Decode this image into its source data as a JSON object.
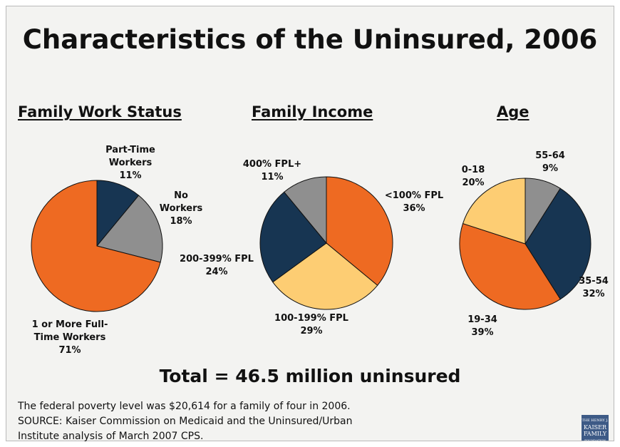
{
  "title": "Characteristics of the Uninsured, 2006",
  "total": "Total = 46.5 million uninsured",
  "footnote_line1": "The federal poverty level was $20,614 for a family of four in 2006.",
  "footnote_line2": "SOURCE: Kaiser Commission on Medicaid and the Uninsured/Urban",
  "footnote_line3": "Institute analysis of March 2007 CPS.",
  "logo_text": [
    "THE HENRY J.",
    "KAISER",
    "FAMILY",
    "FOUNDATION"
  ],
  "colors": {
    "orange": "#ee6a22",
    "navy": "#173552",
    "gray": "#8f8f8f",
    "yellow": "#fdcd73",
    "stroke": "#111111"
  },
  "chart_data": [
    {
      "type": "pie",
      "title": "Family Work Status",
      "slices": [
        {
          "label": "Part-Time\nWorkers\n11%",
          "value": 11,
          "color": "#173552"
        },
        {
          "label": "No\nWorkers\n18%",
          "value": 18,
          "color": "#8f8f8f"
        },
        {
          "label": "1 or More Full-\nTime Workers\n71%",
          "value": 71,
          "color": "#ee6a22"
        }
      ]
    },
    {
      "type": "pie",
      "title": "Family Income",
      "slices": [
        {
          "label": "<100% FPL\n36%",
          "value": 36,
          "color": "#ee6a22"
        },
        {
          "label": "100-199% FPL\n29%",
          "value": 29,
          "color": "#fdcd73"
        },
        {
          "label": "200-399% FPL\n24%",
          "value": 24,
          "color": "#173552"
        },
        {
          "label": "400% FPL+\n11%",
          "value": 11,
          "color": "#8f8f8f"
        }
      ]
    },
    {
      "type": "pie",
      "title": "Age",
      "slices": [
        {
          "label": "55-64\n9%",
          "value": 9,
          "color": "#8f8f8f"
        },
        {
          "label": "35-54\n32%",
          "value": 32,
          "color": "#173552"
        },
        {
          "label": "19-34\n39%",
          "value": 39,
          "color": "#ee6a22"
        },
        {
          "label": "0-18\n20%",
          "value": 20,
          "color": "#fdcd73"
        }
      ]
    }
  ]
}
